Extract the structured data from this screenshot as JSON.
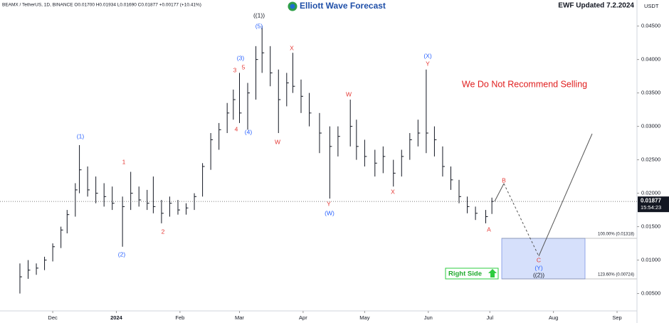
{
  "chart_data": {
    "type": "ohlc",
    "header": "BEAMX / TetherUS, 1D, BINANCE  O0.01700 H0.01934 L0.01690 C0.01877 +0.00177 (+10.41%)",
    "logo": "Elliott Wave Forecast",
    "updated": "EWF Updated 7.2.2024",
    "currency": "USDT",
    "notice": "We Do Not Recommend Selling",
    "right_side": "Right Side",
    "fib_100": "100.00% (0.01318)",
    "fib_123": "123.60% (0.00724)",
    "price_tag": "0.01877",
    "countdown": "15:54:23",
    "color": "#131722",
    "x": [
      0,
      4,
      8,
      12,
      16,
      20,
      23,
      27,
      29,
      33,
      37,
      41,
      45,
      50,
      54,
      58,
      62,
      65,
      69,
      73,
      77,
      81,
      85,
      89,
      93,
      97,
      101,
      104,
      107,
      111,
      115,
      118,
      122,
      126,
      130,
      133,
      137,
      141,
      146,
      151,
      155,
      161,
      164,
      168,
      173,
      177,
      182,
      186,
      190,
      194,
      198,
      202,
      206,
      210,
      214,
      218,
      222,
      227,
      230
    ],
    "high": [
      0.0095,
      0.01,
      0.0095,
      0.0105,
      0.0125,
      0.015,
      0.0175,
      0.0215,
      0.0272,
      0.024,
      0.0225,
      0.0215,
      0.021,
      0.0195,
      0.0232,
      0.021,
      0.0205,
      0.0225,
      0.019,
      0.0195,
      0.019,
      0.0185,
      0.02,
      0.0245,
      0.029,
      0.0305,
      0.0335,
      0.0355,
      0.038,
      0.0365,
      0.042,
      0.045,
      0.042,
      0.0385,
      0.038,
      0.041,
      0.037,
      0.035,
      0.032,
      0.03,
      0.03,
      0.034,
      0.031,
      0.028,
      0.0265,
      0.027,
      0.025,
      0.0265,
      0.029,
      0.031,
      0.0385,
      0.03,
      0.027,
      0.024,
      0.022,
      0.0195,
      0.018,
      0.0175,
      0.01934
    ],
    "low": [
      0.005,
      0.0072,
      0.0078,
      0.0085,
      0.0098,
      0.0118,
      0.014,
      0.0165,
      0.02,
      0.0195,
      0.0185,
      0.018,
      0.0175,
      0.012,
      0.0175,
      0.018,
      0.0175,
      0.017,
      0.0155,
      0.0165,
      0.0168,
      0.0168,
      0.0175,
      0.0195,
      0.0235,
      0.0265,
      0.029,
      0.031,
      0.0305,
      0.0295,
      0.034,
      0.038,
      0.036,
      0.029,
      0.033,
      0.035,
      0.032,
      0.03,
      0.026,
      0.0192,
      0.0255,
      0.027,
      0.025,
      0.024,
      0.0225,
      0.023,
      0.021,
      0.0225,
      0.025,
      0.027,
      0.026,
      0.0255,
      0.0225,
      0.0205,
      0.0185,
      0.017,
      0.016,
      0.0155,
      0.0169
    ],
    "close": [
      0.0075,
      0.0085,
      0.0088,
      0.01,
      0.012,
      0.0145,
      0.0168,
      0.0205,
      0.0235,
      0.0205,
      0.02,
      0.0195,
      0.0185,
      0.018,
      0.02,
      0.019,
      0.0185,
      0.018,
      0.017,
      0.0185,
      0.0175,
      0.0178,
      0.0195,
      0.024,
      0.028,
      0.0295,
      0.032,
      0.034,
      0.032,
      0.035,
      0.04,
      0.041,
      0.038,
      0.034,
      0.0365,
      0.036,
      0.0345,
      0.032,
      0.029,
      0.027,
      0.0285,
      0.03,
      0.027,
      0.0255,
      0.0245,
      0.0255,
      0.023,
      0.0255,
      0.028,
      0.029,
      0.029,
      0.028,
      0.024,
      0.022,
      0.0195,
      0.018,
      0.017,
      0.0165,
      0.01877
    ],
    "xlim": [
      -9.7,
      300.7
    ],
    "ylim": [
      0.0024,
      0.0489
    ],
    "xticks": [
      {
        "value": 16,
        "label": "Dec"
      },
      {
        "value": 47,
        "label": "2024"
      },
      {
        "value": 78,
        "label": "Feb"
      },
      {
        "value": 107,
        "label": "Mar"
      },
      {
        "value": 138,
        "label": "Apr"
      },
      {
        "value": 168,
        "label": "May"
      },
      {
        "value": 199,
        "label": "Jun"
      },
      {
        "value": 229,
        "label": "Jul"
      },
      {
        "value": 260,
        "label": "Aug"
      },
      {
        "value": 291,
        "label": "Sep"
      }
    ],
    "yticks": [
      {
        "value": 0.005,
        "label": "0.00500"
      },
      {
        "value": 0.01,
        "label": "0.01000"
      },
      {
        "value": 0.015,
        "label": "0.01500"
      },
      {
        "value": 0.02,
        "label": "0.02000"
      },
      {
        "value": 0.025,
        "label": "0.02500"
      },
      {
        "value": 0.03,
        "label": "0.03000"
      },
      {
        "value": 0.035,
        "label": "0.03500"
      },
      {
        "value": 0.04,
        "label": "0.04000"
      },
      {
        "value": 0.045,
        "label": "0.04500"
      }
    ],
    "annotations": [
      "((1))",
      "(5)",
      "(3)",
      "5",
      "3",
      "4",
      "(4)",
      "X",
      "W",
      "W",
      "Y",
      "(W)",
      "X",
      "(X)",
      "Y",
      "(1)",
      "1",
      "2",
      "(2)",
      "A",
      "B",
      "C",
      "(Y)",
      "((2))"
    ]
  }
}
